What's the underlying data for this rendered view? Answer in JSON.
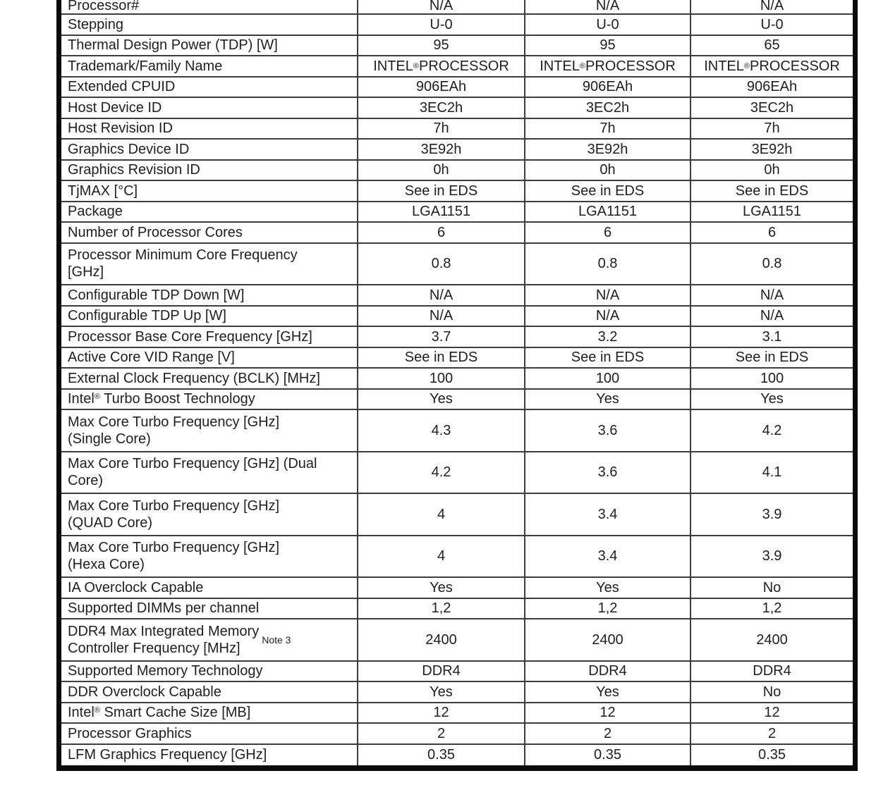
{
  "page": {
    "kind": "processor-specification-table",
    "background_color": "#ffffff",
    "border_color": "#0a0a0a",
    "grid_line_color": "#3d3d3d",
    "text_color": "#1f1f1f"
  },
  "table": {
    "column_count": 4,
    "rows": [
      {
        "label": "Processor#",
        "values": [
          "N/A",
          "N/A",
          "N/A"
        ],
        "size": "first"
      },
      {
        "label": "Stepping",
        "values": [
          "U-0",
          "U-0",
          "U-0"
        ]
      },
      {
        "label": "Thermal Design Power (TDP) [W]",
        "values": [
          "95",
          "95",
          "65"
        ]
      },
      {
        "label": "Trademark/Family Name",
        "values": [
          "INTEL® PROCESSOR",
          "INTEL® PROCESSOR",
          "INTEL® PROCESSOR"
        ]
      },
      {
        "label": "Extended CPUID",
        "values": [
          "906EAh",
          "906EAh",
          "906EAh"
        ]
      },
      {
        "label": "Host Device ID",
        "values": [
          "3EC2h",
          "3EC2h",
          "3EC2h"
        ]
      },
      {
        "label": "Host Revision ID",
        "values": [
          "7h",
          "7h",
          "7h"
        ]
      },
      {
        "label": "Graphics Device ID",
        "values": [
          "3E92h",
          "3E92h",
          "3E92h"
        ]
      },
      {
        "label": "Graphics Revision ID",
        "values": [
          "0h",
          "0h",
          "0h"
        ]
      },
      {
        "label": "TjMAX [°C]",
        "values": [
          "See in EDS",
          "See in EDS",
          "See in EDS"
        ]
      },
      {
        "label": "Package",
        "values": [
          "LGA1151",
          "LGA1151",
          "LGA1151"
        ]
      },
      {
        "label": "Number of Processor Cores",
        "values": [
          "6",
          "6",
          "6"
        ]
      },
      {
        "label": "Processor Minimum Core Frequency\n[GHz]",
        "values": [
          "0.8",
          "0.8",
          "0.8"
        ],
        "size": "double"
      },
      {
        "label": "Configurable TDP Down [W]",
        "values": [
          "N/A",
          "N/A",
          "N/A"
        ]
      },
      {
        "label": "Configurable TDP Up [W]",
        "values": [
          "N/A",
          "N/A",
          "N/A"
        ]
      },
      {
        "label": "Processor Base Core Frequency [GHz]",
        "values": [
          "3.7",
          "3.2",
          "3.1"
        ]
      },
      {
        "label": "Active Core VID Range [V]",
        "values": [
          "See in EDS",
          "See in EDS",
          "See in EDS"
        ]
      },
      {
        "label": "External Clock Frequency (BCLK) [MHz]",
        "values": [
          "100",
          "100",
          "100"
        ]
      },
      {
        "label": "Intel® Turbo Boost Technology",
        "values": [
          "Yes",
          "Yes",
          "Yes"
        ]
      },
      {
        "label": "Max Core Turbo Frequency [GHz]\n(Single Core)",
        "values": [
          "4.3",
          "3.6",
          "4.2"
        ],
        "size": "double"
      },
      {
        "label": "Max Core Turbo Frequency [GHz] (Dual\nCore)",
        "values": [
          "4.2",
          "3.6",
          "4.1"
        ],
        "size": "double"
      },
      {
        "label": "Max Core Turbo Frequency [GHz]\n(QUAD Core)",
        "values": [
          "4",
          "3.4",
          "3.9"
        ],
        "size": "double"
      },
      {
        "label": "Max Core Turbo Frequency [GHz]\n(Hexa Core)",
        "values": [
          "4",
          "3.4",
          "3.9"
        ],
        "size": "double"
      },
      {
        "label": "IA Overclock Capable",
        "values": [
          "Yes",
          "Yes",
          "No"
        ]
      },
      {
        "label": "Supported DIMMs per channel",
        "values": [
          "1,2",
          "1,2",
          "1,2"
        ]
      },
      {
        "label": "DDR4 Max Integrated Memory\nController Frequency [MHz]",
        "note": "Note 3",
        "values": [
          "2400",
          "2400",
          "2400"
        ],
        "size": "double"
      },
      {
        "label": "Supported Memory Technology",
        "values": [
          "DDR4",
          "DDR4",
          "DDR4"
        ]
      },
      {
        "label": "DDR Overclock Capable",
        "values": [
          "Yes",
          "Yes",
          "No"
        ]
      },
      {
        "label": "Intel® Smart Cache Size [MB]",
        "values": [
          "12",
          "12",
          "12"
        ]
      },
      {
        "label": "Processor Graphics",
        "values": [
          "2",
          "2",
          "2"
        ]
      },
      {
        "label": "LFM Graphics Frequency [GHz]",
        "values": [
          "0.35",
          "0.35",
          "0.35"
        ]
      }
    ]
  }
}
